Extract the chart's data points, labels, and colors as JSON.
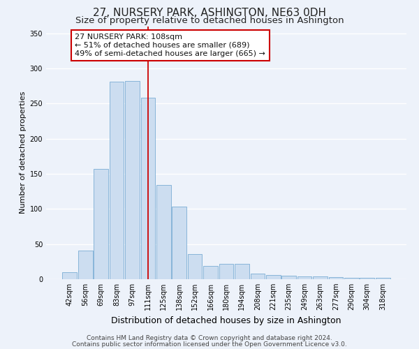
{
  "title": "27, NURSERY PARK, ASHINGTON, NE63 0DH",
  "subtitle": "Size of property relative to detached houses in Ashington",
  "xlabel": "Distribution of detached houses by size in Ashington",
  "ylabel": "Number of detached properties",
  "bar_labels": [
    "42sqm",
    "56sqm",
    "69sqm",
    "83sqm",
    "97sqm",
    "111sqm",
    "125sqm",
    "138sqm",
    "152sqm",
    "166sqm",
    "180sqm",
    "194sqm",
    "208sqm",
    "221sqm",
    "235sqm",
    "249sqm",
    "263sqm",
    "277sqm",
    "290sqm",
    "304sqm",
    "318sqm"
  ],
  "bar_values": [
    10,
    41,
    157,
    281,
    282,
    258,
    134,
    103,
    36,
    19,
    22,
    22,
    8,
    6,
    5,
    4,
    4,
    3,
    2,
    2,
    2
  ],
  "bar_color": "#ccddf0",
  "bar_edge_color": "#7aadd4",
  "vline_color": "#cc0000",
  "vline_x": 5.0,
  "annotation_title": "27 NURSERY PARK: 108sqm",
  "annotation_line1": "← 51% of detached houses are smaller (689)",
  "annotation_line2": "49% of semi-detached houses are larger (665) →",
  "annotation_box_color": "#ffffff",
  "annotation_box_edge": "#cc0000",
  "ylim": [
    0,
    360
  ],
  "yticks": [
    0,
    50,
    100,
    150,
    200,
    250,
    300,
    350
  ],
  "footer_line1": "Contains HM Land Registry data © Crown copyright and database right 2024.",
  "footer_line2": "Contains public sector information licensed under the Open Government Licence v3.0.",
  "background_color": "#edf2fa",
  "plot_bg_color": "#edf2fa",
  "grid_color": "#ffffff",
  "title_fontsize": 11,
  "subtitle_fontsize": 9.5,
  "xlabel_fontsize": 9,
  "ylabel_fontsize": 8,
  "tick_fontsize": 7,
  "annotation_fontsize": 8,
  "footer_fontsize": 6.5
}
